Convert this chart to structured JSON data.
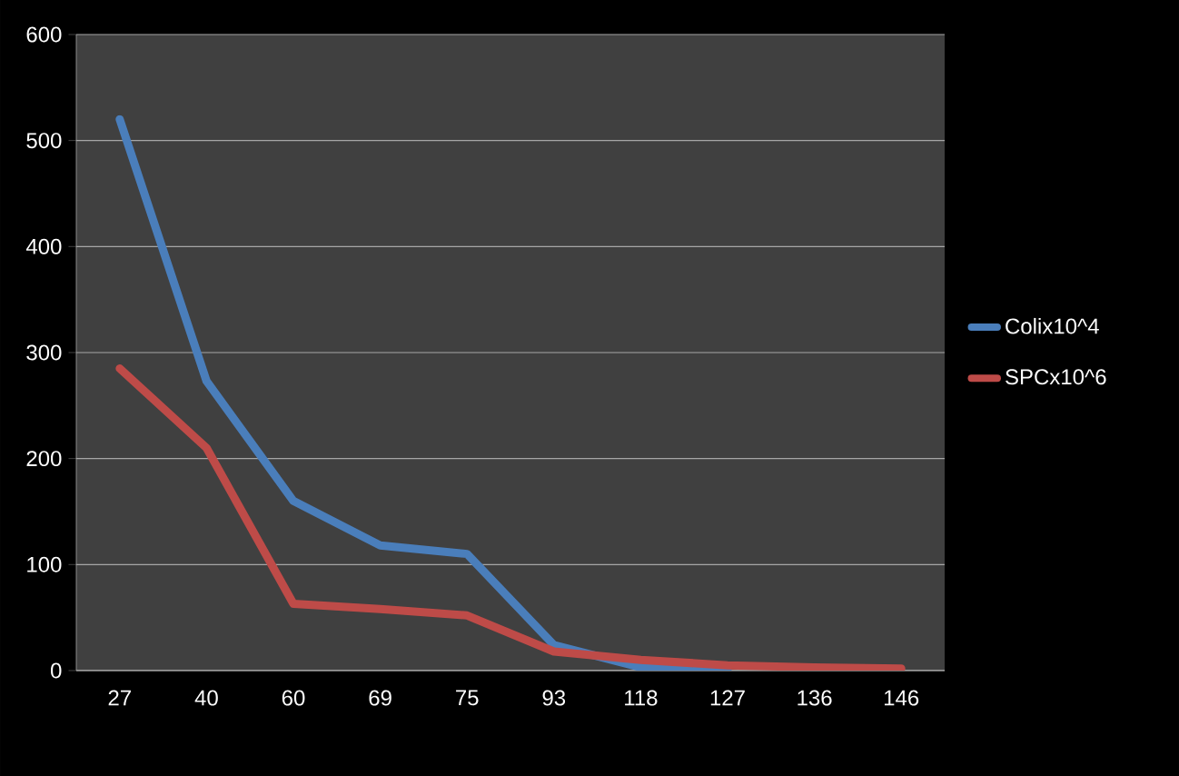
{
  "chart_data": {
    "type": "line",
    "categories": [
      "27",
      "40",
      "60",
      "69",
      "75",
      "93",
      "118",
      "127",
      "136",
      "146"
    ],
    "series": [
      {
        "name": "Colix10^4",
        "color": "#4a7ebb",
        "values": [
          520,
          273,
          160,
          118,
          110,
          24,
          3,
          1,
          null,
          null
        ]
      },
      {
        "name": "SPCx10^6",
        "color": "#be4b48",
        "values": [
          285,
          210,
          63,
          58,
          52,
          18,
          10,
          5,
          3,
          2
        ]
      }
    ],
    "ylim": [
      0,
      600
    ],
    "yticks": [
      0,
      100,
      200,
      300,
      400,
      500,
      600
    ],
    "grid": "y",
    "legend": "right"
  }
}
